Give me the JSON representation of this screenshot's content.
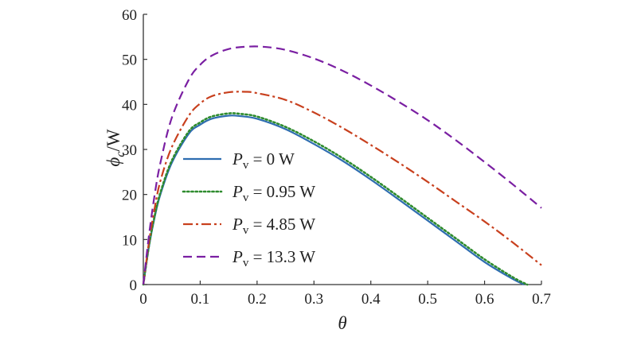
{
  "chart_data": {
    "type": "line",
    "xlabel": "θ",
    "ylabel_symbol": "ϕ",
    "ylabel_subscript": "c",
    "ylabel_unit": "/W",
    "xlim": [
      0,
      0.7
    ],
    "ylim": [
      0,
      60
    ],
    "x_ticks": [
      "0",
      "0.1",
      "0.2",
      "0.3",
      "0.4",
      "0.5",
      "0.6",
      "0.7"
    ],
    "y_ticks": [
      "0",
      "10",
      "20",
      "30",
      "40",
      "50",
      "60"
    ],
    "grid": false,
    "legend_position": "center-left",
    "series": [
      {
        "name": "P_v = 0 W",
        "legend_symbol": "P",
        "legend_subscript": "v",
        "legend_value": " = 0 W",
        "color": "#2e6db0",
        "dash": "solid",
        "x": [
          0,
          0.01,
          0.02,
          0.03,
          0.05,
          0.08,
          0.1,
          0.12,
          0.15,
          0.17,
          0.2,
          0.25,
          0.3,
          0.35,
          0.4,
          0.45,
          0.5,
          0.55,
          0.6,
          0.65,
          0.67
        ],
        "y": [
          0,
          8.5,
          15,
          20,
          27,
          33.5,
          35.5,
          36.8,
          37.5,
          37.4,
          36.8,
          34.5,
          31.2,
          27.5,
          23.3,
          18.8,
          14.2,
          9.6,
          5.0,
          1.2,
          0
        ]
      },
      {
        "name": "P_v = 0.95 W",
        "legend_symbol": "P",
        "legend_subscript": "v",
        "legend_value": " = 0.95 W",
        "color": "#2e8b2e",
        "dash": "dotted",
        "x": [
          0,
          0.01,
          0.02,
          0.03,
          0.05,
          0.08,
          0.1,
          0.12,
          0.15,
          0.17,
          0.2,
          0.25,
          0.3,
          0.35,
          0.4,
          0.45,
          0.5,
          0.55,
          0.6,
          0.65,
          0.675
        ],
        "y": [
          0,
          8.7,
          15.3,
          20.4,
          27.5,
          34,
          36,
          37.3,
          38,
          37.9,
          37.3,
          35.0,
          31.8,
          28.1,
          23.9,
          19.4,
          14.8,
          10.2,
          5.6,
          1.6,
          0
        ]
      },
      {
        "name": "P_v = 4.85 W",
        "legend_symbol": "P",
        "legend_subscript": "v",
        "legend_value": " = 4.85 W",
        "color": "#c8401e",
        "dash": "dashdot",
        "x": [
          0,
          0.01,
          0.02,
          0.03,
          0.05,
          0.08,
          0.1,
          0.12,
          0.15,
          0.18,
          0.2,
          0.25,
          0.3,
          0.35,
          0.4,
          0.45,
          0.5,
          0.55,
          0.6,
          0.65,
          0.7
        ],
        "y": [
          0,
          9.5,
          17,
          23,
          30.5,
          37.5,
          40.2,
          41.8,
          42.7,
          42.8,
          42.5,
          41.0,
          38.2,
          34.8,
          31.0,
          27.0,
          22.8,
          18.4,
          14.0,
          9.3,
          4.3
        ]
      },
      {
        "name": "P_v = 13.3 W",
        "legend_symbol": "P",
        "legend_subscript": "v",
        "legend_value": " = 13.3 W",
        "color": "#7a1fa2",
        "dash": "dashed",
        "x": [
          0,
          0.01,
          0.02,
          0.03,
          0.05,
          0.08,
          0.1,
          0.12,
          0.15,
          0.18,
          0.21,
          0.25,
          0.3,
          0.35,
          0.4,
          0.45,
          0.5,
          0.55,
          0.6,
          0.65,
          0.7
        ],
        "y": [
          0,
          11,
          20,
          27,
          37,
          45.5,
          48.8,
          50.8,
          52.3,
          52.8,
          52.8,
          52.1,
          50.2,
          47.5,
          44.2,
          40.5,
          36.5,
          32.0,
          27.2,
          22.2,
          17.0
        ]
      }
    ]
  }
}
